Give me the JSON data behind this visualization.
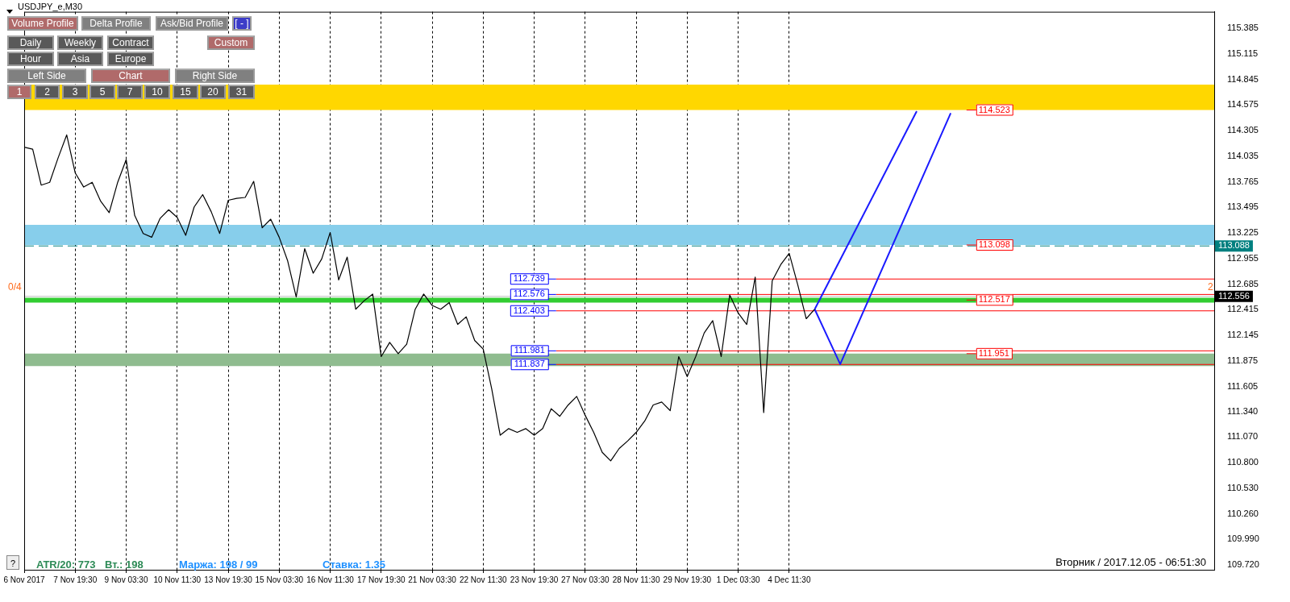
{
  "chart_data": {
    "type": "line",
    "title": "USDJPY_e,M30",
    "categories": [
      "6 Nov 2017",
      null,
      null,
      null,
      null,
      null,
      "7 Nov 19:30",
      null,
      null,
      null,
      null,
      null,
      "9 Nov 03:30",
      null,
      null,
      null,
      null,
      null,
      "10 Nov 11:30",
      null,
      null,
      null,
      null,
      null,
      "13 Nov 19:30",
      null,
      null,
      null,
      null,
      null,
      "15 Nov 03:30",
      null,
      null,
      null,
      null,
      null,
      "16 Nov 11:30",
      null,
      null,
      null,
      null,
      null,
      "17 Nov 19:30",
      null,
      null,
      null,
      null,
      null,
      "21 Nov 03:30",
      null,
      null,
      null,
      null,
      null,
      "22 Nov 11:30",
      null,
      null,
      null,
      null,
      null,
      "23 Nov 19:30",
      null,
      null,
      null,
      null,
      null,
      "27 Nov 03:30",
      null,
      null,
      null,
      null,
      null,
      "28 Nov 11:30",
      null,
      null,
      null,
      null,
      null,
      "29 Nov 19:30",
      null,
      null,
      null,
      null,
      null,
      "1 Dec 03:30",
      null,
      null,
      null,
      null,
      null,
      "4 Dec 11:30",
      null,
      null,
      null,
      null,
      null,
      null,
      null,
      null,
      null,
      null,
      null,
      null,
      null,
      null,
      null,
      null,
      null,
      null,
      null,
      null,
      null,
      null,
      null,
      null,
      null,
      null,
      null,
      null,
      null,
      null,
      null,
      null,
      null,
      null,
      null,
      null,
      null,
      null,
      null,
      null,
      null,
      null,
      null,
      null,
      null,
      null,
      null,
      null,
      null,
      null
    ],
    "series": [
      {
        "color": "#000000",
        "values": [
          114.13,
          114.11,
          113.73,
          113.76,
          114.02,
          114.26,
          113.86,
          113.71,
          113.76,
          113.56,
          113.44,
          113.76,
          114.0,
          113.41,
          113.22,
          113.18,
          113.38,
          113.47,
          113.39,
          113.2,
          113.5,
          113.63,
          113.45,
          113.22,
          113.57,
          113.59,
          113.6,
          113.77,
          113.28,
          113.37,
          113.18,
          112.93,
          112.55,
          113.06,
          112.8,
          112.95,
          113.23,
          112.73,
          112.97,
          112.42,
          112.51,
          112.58,
          111.92,
          112.07,
          111.95,
          112.05,
          112.42,
          112.58,
          112.46,
          112.42,
          112.49,
          112.26,
          112.34,
          112.09,
          112.0,
          111.58,
          111.09,
          111.16,
          111.12,
          111.16,
          111.09,
          111.16,
          111.37,
          111.29,
          111.41,
          111.5,
          111.3,
          111.12,
          110.91,
          110.82,
          110.95,
          111.03,
          111.12,
          111.24,
          111.41,
          111.44,
          111.35,
          111.92,
          111.71,
          111.92,
          112.17,
          112.3,
          111.92,
          112.57,
          112.38,
          112.26,
          112.76,
          111.33,
          112.72,
          112.89,
          113.01,
          112.68,
          112.32,
          112.42,
          null,
          null,
          null,
          null,
          null,
          null,
          null,
          null,
          null,
          null,
          null,
          null,
          null,
          null,
          null,
          null,
          null,
          null,
          null,
          null,
          null,
          null,
          null,
          null,
          null,
          null,
          null,
          null,
          null,
          null,
          null,
          null,
          null,
          null,
          null,
          null,
          null,
          null,
          null,
          null,
          null,
          null,
          null,
          null,
          null,
          null,
          null
        ]
      },
      {
        "color": "#1a1aff",
        "values": [
          null,
          null,
          null,
          null,
          null,
          null,
          null,
          null,
          null,
          null,
          null,
          null,
          null,
          null,
          null,
          null,
          null,
          null,
          null,
          null,
          null,
          null,
          null,
          null,
          null,
          null,
          null,
          null,
          null,
          null,
          null,
          null,
          null,
          null,
          null,
          null,
          null,
          null,
          null,
          null,
          null,
          null,
          null,
          null,
          null,
          null,
          null,
          null,
          null,
          null,
          null,
          null,
          null,
          null,
          null,
          null,
          null,
          null,
          null,
          null,
          null,
          null,
          null,
          null,
          null,
          null,
          null,
          null,
          null,
          null,
          null,
          null,
          null,
          null,
          null,
          null,
          null,
          null,
          null,
          null,
          null,
          null,
          null,
          null,
          null,
          null,
          null,
          null,
          null,
          null,
          null,
          null,
          null,
          112.42,
          null,
          null,
          null,
          null,
          null,
          null,
          null,
          null,
          null,
          null,
          null,
          114.51,
          null,
          null,
          null,
          null,
          null,
          null,
          null,
          null,
          null,
          null,
          null,
          null,
          null,
          null,
          null,
          null,
          null,
          null,
          null,
          null,
          null,
          null,
          null,
          null,
          null,
          null,
          null,
          null,
          null,
          null,
          null,
          null,
          null,
          null,
          null
        ]
      },
      {
        "color": "#1a1aff",
        "values": [
          null,
          null,
          null,
          null,
          null,
          null,
          null,
          null,
          null,
          null,
          null,
          null,
          null,
          null,
          null,
          null,
          null,
          null,
          null,
          null,
          null,
          null,
          null,
          null,
          null,
          null,
          null,
          null,
          null,
          null,
          null,
          null,
          null,
          null,
          null,
          null,
          null,
          null,
          null,
          null,
          null,
          null,
          null,
          null,
          null,
          null,
          null,
          null,
          null,
          null,
          null,
          null,
          null,
          null,
          null,
          null,
          null,
          null,
          null,
          null,
          null,
          null,
          null,
          null,
          null,
          null,
          null,
          null,
          null,
          null,
          null,
          null,
          null,
          null,
          null,
          null,
          null,
          null,
          null,
          null,
          null,
          null,
          null,
          null,
          null,
          null,
          null,
          null,
          null,
          null,
          null,
          null,
          null,
          112.42,
          null,
          null,
          111.84,
          null,
          null,
          null,
          null,
          null,
          null,
          null,
          null,
          null,
          null,
          null,
          null,
          114.49,
          null,
          null,
          null,
          null,
          null,
          null,
          null,
          null,
          null,
          null,
          null,
          null,
          null,
          null,
          null,
          null,
          null,
          null,
          null,
          null,
          null,
          null,
          null,
          null,
          null,
          null,
          null,
          null,
          null,
          null,
          null
        ]
      }
    ],
    "ylim": [
      109.67,
      115.56
    ],
    "yticks": [
      115.385,
      115.115,
      114.845,
      114.575,
      114.305,
      114.035,
      113.765,
      113.495,
      113.225,
      112.955,
      112.685,
      112.415,
      112.145,
      111.875,
      111.605,
      {
        "value": 111.34,
        "label": "111.340"
      },
      {
        "value": 111.07,
        "label": "111.070"
      },
      {
        "value": 110.8,
        "label": "110.800"
      },
      {
        "value": 110.53,
        "label": "110.530"
      },
      {
        "value": 110.26,
        "label": "110.260"
      },
      {
        "value": 109.99,
        "label": "109.990"
      },
      {
        "value": 109.72,
        "label": "109.720"
      }
    ],
    "grid": "x",
    "legend": false,
    "ref_lines": [
      {
        "axis": "y",
        "value": 113.088,
        "label": "113.088",
        "color": "#008080",
        "line_style": "dashed"
      },
      {
        "axis": "y",
        "value": 112.556,
        "label": "112.556",
        "color": "#c0c0c0",
        "line_style": "solid"
      },
      {
        "axis": "y",
        "value": 112.739,
        "label": "112.739",
        "color": "#ff0000"
      },
      {
        "axis": "y",
        "value": 112.576,
        "label": "112.576",
        "color": "#ff0000"
      },
      {
        "axis": "y",
        "value": 112.403,
        "label": "112.403",
        "color": "#ff0000"
      },
      {
        "axis": "y",
        "value": 111.981,
        "label": "111.981",
        "color": "#ff0000"
      },
      {
        "axis": "y",
        "value": 111.837,
        "label": "111.837",
        "color": "#ff0000"
      }
    ],
    "bands": [
      {
        "axis": "y",
        "from": 114.523,
        "to": 114.79,
        "color": "#ffd700"
      },
      {
        "axis": "y",
        "from": 113.098,
        "to": 113.31,
        "color": "#87ceeb"
      },
      {
        "axis": "y",
        "from": 112.49,
        "to": 112.54,
        "color": "#32cd32"
      },
      {
        "axis": "y",
        "from": 111.82,
        "to": 111.951,
        "color": "#8fbc8f"
      }
    ],
    "annotations": [
      "Volume Profile",
      "Delta Profile",
      "Ask/Bid Profile",
      "[ - ]",
      "Daily",
      "Weekly",
      "Contract",
      "Custom",
      "Hour",
      "Asia",
      "Europe",
      "Left Side",
      "Chart",
      "Right Side",
      "1",
      "2",
      "3",
      "5",
      "7",
      "10",
      "15",
      "20",
      "31",
      "0/4",
      "2",
      "?",
      "ATR/20: 773",
      "Вт.: 198",
      "Маржа: 198 / 99",
      "Ставка: 1.35",
      "Вторник / 2017.12.05 - 06:51:30",
      {
        "text": "114.523",
        "y": 114.523
      },
      {
        "text": "113.098",
        "y": 113.098
      },
      {
        "text": "112.517",
        "y": 112.517
      },
      {
        "text": "111.951",
        "y": 111.951
      }
    ]
  }
}
